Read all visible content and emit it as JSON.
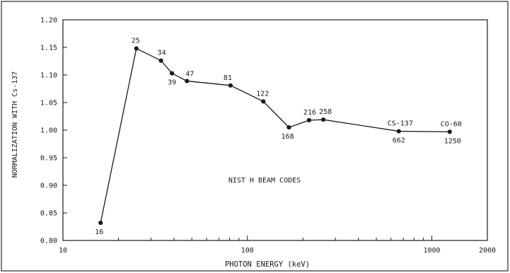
{
  "chart_data": {
    "type": "scatter",
    "x_scale": "log",
    "xlabel": "PHOTON ENERGY (keV)",
    "ylabel": "NORMALIZATION WITH Cs-137",
    "xlim": [
      10,
      2000
    ],
    "ylim": [
      0.8,
      1.2
    ],
    "x_ticks": [
      10,
      100,
      1000,
      2000
    ],
    "x_tick_labels": [
      "10",
      "100",
      "1000",
      "2000"
    ],
    "y_ticks": [
      0.8,
      0.85,
      0.9,
      0.95,
      1.0,
      1.05,
      1.1,
      1.15,
      1.2
    ],
    "y_tick_labels": [
      "0.80",
      "0.85",
      "0.90",
      "0.95",
      "1.00",
      "1.05",
      "1.10",
      "1.15",
      "1.20"
    ],
    "annotation": "NIST H BEAM CODES",
    "grid": false,
    "series": [
      {
        "points": [
          {
            "x": 16,
            "y": 0.832,
            "label": "16"
          },
          {
            "x": 25,
            "y": 1.148,
            "label": "25"
          },
          {
            "x": 34,
            "y": 1.126,
            "label": "34"
          },
          {
            "x": 39,
            "y": 1.103,
            "label": "39"
          },
          {
            "x": 47,
            "y": 1.089,
            "label": "47"
          },
          {
            "x": 81,
            "y": 1.081,
            "label": "81"
          },
          {
            "x": 122,
            "y": 1.052,
            "label": "122"
          },
          {
            "x": 168,
            "y": 1.005,
            "label": "168"
          },
          {
            "x": 216,
            "y": 1.018,
            "label": "216"
          },
          {
            "x": 258,
            "y": 1.019,
            "label": "258"
          },
          {
            "x": 662,
            "y": 0.998,
            "label": "662",
            "name_label": "CS-137"
          },
          {
            "x": 1250,
            "y": 0.997,
            "label": "1250",
            "name_label": "CO-60"
          }
        ]
      }
    ]
  }
}
